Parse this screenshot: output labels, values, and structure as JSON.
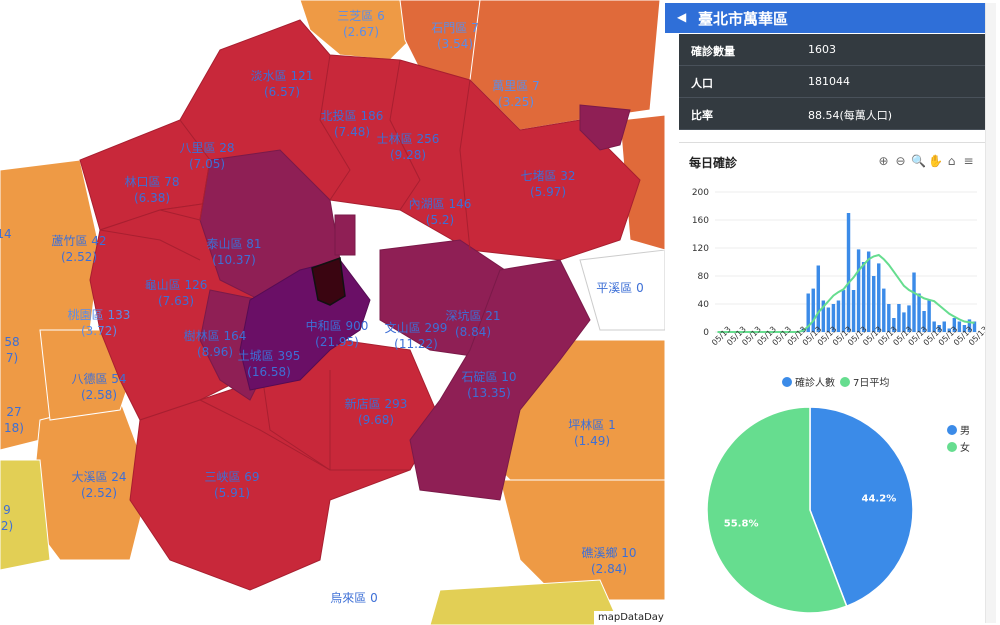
{
  "map": {
    "attribution": "mapDataDay",
    "districts": [
      {
        "name": "三芝區 6",
        "rate": "(2.67)"
      },
      {
        "name": "石門區 7",
        "rate": "(3.54)"
      },
      {
        "name": "萬里區 7",
        "rate": "(3.25)"
      },
      {
        "name": "淡水區 121",
        "rate": "(6.57)"
      },
      {
        "name": "北投區 186",
        "rate": "(7.48)"
      },
      {
        "name": "士林區 256",
        "rate": "(9.28)"
      },
      {
        "name": "八里區 28",
        "rate": "(7.05)"
      },
      {
        "name": "林口區 78",
        "rate": "(6.38)"
      },
      {
        "name": "七堵區 32",
        "rate": "(5.97)"
      },
      {
        "name": "內湖區 146",
        "rate": "(5.2)"
      },
      {
        "name": "蘆竹區 42",
        "rate": "(2.52)"
      },
      {
        "name": "泰山區 81",
        "rate": "(10.37)"
      },
      {
        "name": "龜山區 126",
        "rate": "(7.63)"
      },
      {
        "name": "桃園區 133",
        "rate": "(3.72)"
      },
      {
        "name": "樹林區 164",
        "rate": "(8.96)"
      },
      {
        "name": "中和區 900",
        "rate": "(21.95)"
      },
      {
        "name": "文山區 299",
        "rate": "(11.22)"
      },
      {
        "name": "深坑區 21",
        "rate": "(8.84)"
      },
      {
        "name": "土城區 395",
        "rate": "(16.58)"
      },
      {
        "name": "平溪區 0",
        "rate": ""
      },
      {
        "name": "八德區 54",
        "rate": "(2.58)"
      },
      {
        "name": "石碇區 10",
        "rate": "(13.35)"
      },
      {
        "name": "新店區 293",
        "rate": "(9.68)"
      },
      {
        "name": "坪林區 1",
        "rate": "(1.49)"
      },
      {
        "name": "大溪區 24",
        "rate": "(2.52)"
      },
      {
        "name": "三峽區 69",
        "rate": "(5.91)"
      },
      {
        "name": "礁溪鄉 10",
        "rate": "(2.84)"
      },
      {
        "name": "烏來區 0",
        "rate": ""
      },
      {
        "name": "14",
        "rate": ""
      },
      {
        "name": "58",
        "rate": "7)"
      },
      {
        "name": "27",
        "rate": "18)"
      },
      {
        "name": "9",
        "rate": "2)"
      }
    ]
  },
  "panel": {
    "title": "臺北市萬華區",
    "back_icon": "chevron-left-icon",
    "stats": [
      {
        "label": "確診數量",
        "value": "1603"
      },
      {
        "label": "人口",
        "value": "181044"
      },
      {
        "label": "比率",
        "value": "88.54(每萬人口)"
      }
    ],
    "daily_chart_title": "每日確診",
    "toolbar_icons": [
      "zoom-in-icon",
      "zoom-out-icon",
      "zoom-select-icon",
      "pan-icon",
      "home-icon",
      "menu-icon"
    ],
    "colors": {
      "bar": "#3b8be8",
      "line": "#66dd8f",
      "title_bg": "#2f6fd8",
      "info_bg": "#333a40"
    }
  },
  "chart_data": [
    {
      "type": "bar",
      "title": "每日確診",
      "xlabel": "",
      "ylabel": "",
      "ylim": [
        0,
        200
      ],
      "yticks": [
        0,
        40,
        80,
        120,
        160,
        200
      ],
      "x_tick_text": "05/13 ... 06/13",
      "legend_position": "bottom",
      "series": [
        {
          "name": "確診人數",
          "type": "bar",
          "values": [
            0,
            0,
            0,
            0,
            0,
            0,
            0,
            0,
            0,
            0,
            0,
            0,
            0,
            0,
            0,
            0,
            0,
            5,
            55,
            62,
            95,
            45,
            35,
            40,
            45,
            60,
            170,
            60,
            118,
            100,
            115,
            80,
            98,
            62,
            40,
            20,
            40,
            28,
            38,
            85,
            55,
            30,
            45,
            15,
            10,
            15,
            5,
            20,
            15,
            10,
            18,
            15
          ]
        },
        {
          "name": "7日平均",
          "type": "line",
          "values": [
            0,
            0,
            0,
            0,
            0,
            0,
            0,
            0,
            0,
            0,
            0,
            0,
            0,
            0,
            0,
            0,
            0,
            2,
            8,
            16,
            28,
            36,
            44,
            52,
            57,
            61,
            70,
            78,
            88,
            96,
            104,
            108,
            110,
            104,
            96,
            86,
            76,
            66,
            60,
            56,
            52,
            48,
            46,
            44,
            38,
            32,
            26,
            22,
            18,
            15,
            14,
            13
          ]
        }
      ]
    },
    {
      "type": "pie",
      "series": [
        {
          "name": "男",
          "value": 44.2,
          "label": "44.2%",
          "color": "#3b8be8"
        },
        {
          "name": "女",
          "value": 55.8,
          "label": "55.8%",
          "color": "#66dd8f"
        }
      ]
    }
  ]
}
